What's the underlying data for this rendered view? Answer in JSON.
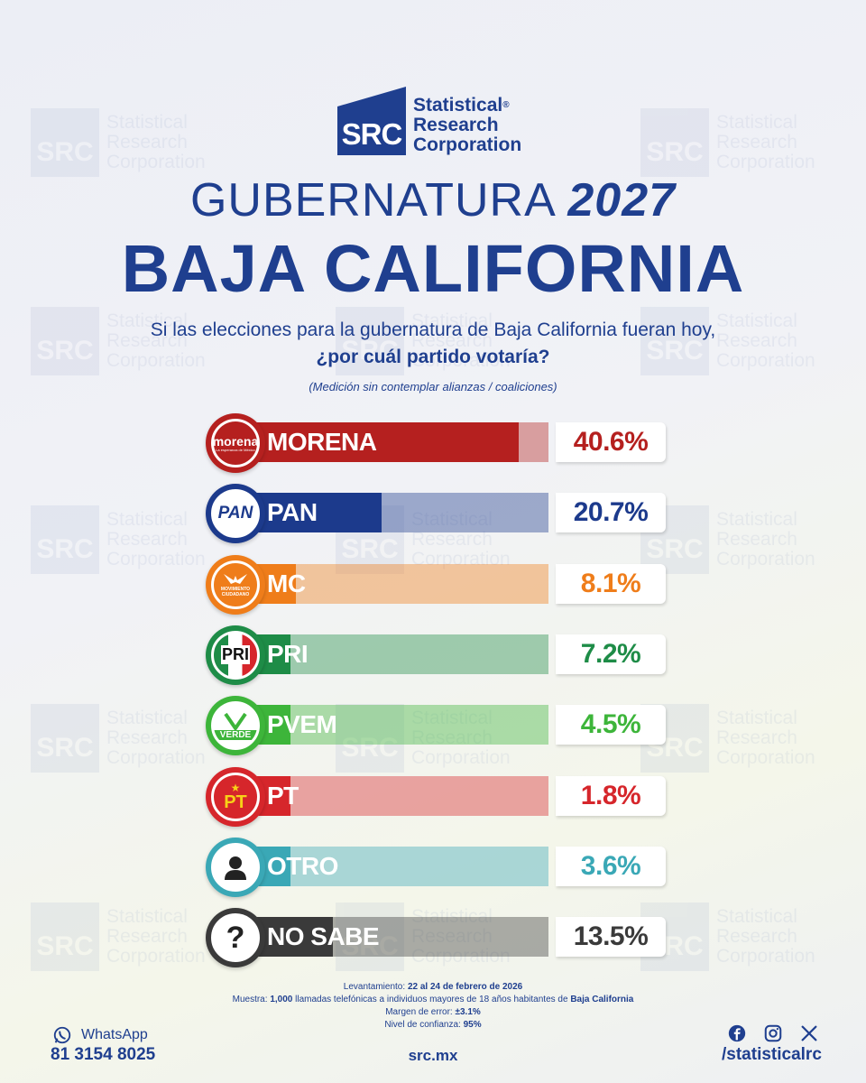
{
  "watermark": {
    "mark": "SRC",
    "lines": [
      "Statistical",
      "Research",
      "Corporation"
    ]
  },
  "brand": {
    "mark": "SRC",
    "name_line1": "Statistical",
    "name_line2": "Research",
    "name_line3": "Corporation",
    "reg": "®",
    "color": "#1f3f8f"
  },
  "header": {
    "title_prefix": "GUBERNATURA",
    "title_year": "2027",
    "state": "BAJA CALIFORNIA",
    "question_line1": "Si las elecciones para la gubernatura de Baja California fueran hoy,",
    "question_line2": "¿por cuál partido votaría?",
    "note": "(Medición sin contemplar alianzas / coaliciones)"
  },
  "chart_data": {
    "type": "bar",
    "orientation": "horizontal",
    "title": "GUBERNATURA 2027 BAJA CALIFORNIA",
    "categories": [
      "MORENA",
      "PAN",
      "MC",
      "PRI",
      "PVEM",
      "PT",
      "OTRO",
      "NO SABE"
    ],
    "values": [
      40.6,
      20.7,
      8.1,
      7.2,
      4.5,
      1.8,
      3.6,
      13.5
    ],
    "value_labels": [
      "40.6%",
      "20.7%",
      "8.1%",
      "7.2%",
      "4.5%",
      "1.8%",
      "3.6%",
      "13.5%"
    ],
    "unit": "%",
    "colors": [
      "#b5201f",
      "#1c3a8c",
      "#ef7d1a",
      "#1e8c47",
      "#3db53a",
      "#d6262b",
      "#3aa8b6",
      "#3a3a3a"
    ],
    "value_colors": [
      "#b5201f",
      "#1c3a8c",
      "#ef7d1a",
      "#1e8c47",
      "#3db53a",
      "#d6262b",
      "#3aa8b6",
      "#3a3a3a"
    ],
    "logo_text": [
      "morena",
      "PAN",
      "MOVIMIENTO CIUDADANO",
      "PRI",
      "VERDE",
      "PT",
      "",
      "?"
    ],
    "logo_subtext": [
      "La esperanza de México",
      "",
      "",
      "",
      "",
      "",
      "",
      ""
    ],
    "xlim": [
      0,
      45
    ]
  },
  "footer": {
    "survey_date_label": "Levantamiento:",
    "survey_date": "22 al 24 de febrero de 2026",
    "sample_label": "Muestra:",
    "sample_n": "1,000",
    "sample_text": "llamadas telefónicas a individuos mayores de 18 años habitantes de",
    "sample_place": "Baja California",
    "margin_label": "Margen de error:",
    "margin": "±3.1%",
    "confidence_label": "Nivel de confianza:",
    "confidence": "95%"
  },
  "contact": {
    "whatsapp_label": "WhatsApp",
    "phone": "81 3154 8025",
    "website": "src.mx",
    "handle": "/statisticalrc",
    "social_icons": [
      "facebook-icon",
      "instagram-icon",
      "x-icon"
    ]
  }
}
